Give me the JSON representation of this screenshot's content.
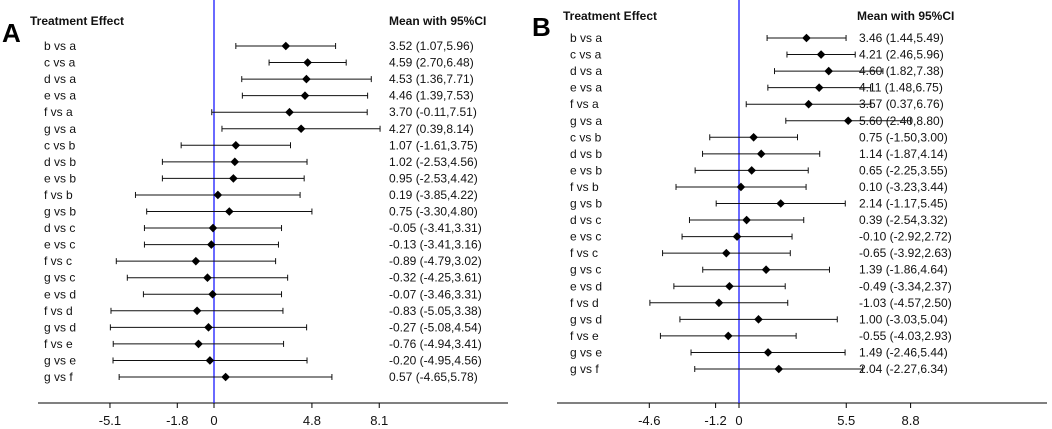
{
  "chart_data": [
    {
      "type": "forest",
      "panel_label": "A",
      "row_header": "Treatment Effect",
      "value_header": "Mean with 95%CI",
      "x_ticks": [
        "-5.1",
        "-1.8",
        "0",
        "4.8",
        "8.1"
      ],
      "reference_line": 0,
      "reference_color": "#1a1aff",
      "rows": [
        {
          "label": "b vs a",
          "mean": 3.52,
          "lower": 1.07,
          "upper": 5.96,
          "text": "3.52 (1.07,5.96)"
        },
        {
          "label": "c vs a",
          "mean": 4.59,
          "lower": 2.7,
          "upper": 6.48,
          "text": "4.59 (2.70,6.48)"
        },
        {
          "label": "d vs a",
          "mean": 4.53,
          "lower": 1.36,
          "upper": 7.71,
          "text": "4.53 (1.36,7.71)"
        },
        {
          "label": "e vs a",
          "mean": 4.46,
          "lower": 1.39,
          "upper": 7.53,
          "text": "4.46 (1.39,7.53)"
        },
        {
          "label": "f vs a",
          "mean": 3.7,
          "lower": -0.11,
          "upper": 7.51,
          "text": "3.70 (-0.11,7.51)"
        },
        {
          "label": "g vs a",
          "mean": 4.27,
          "lower": 0.39,
          "upper": 8.14,
          "text": "4.27 (0.39,8.14)"
        },
        {
          "label": "c vs b",
          "mean": 1.07,
          "lower": -1.61,
          "upper": 3.75,
          "text": "1.07 (-1.61,3.75)"
        },
        {
          "label": "d vs b",
          "mean": 1.02,
          "lower": -2.53,
          "upper": 4.56,
          "text": "1.02 (-2.53,4.56)"
        },
        {
          "label": "e vs b",
          "mean": 0.95,
          "lower": -2.53,
          "upper": 4.42,
          "text": "0.95 (-2.53,4.42)"
        },
        {
          "label": "f vs b",
          "mean": 0.19,
          "lower": -3.85,
          "upper": 4.22,
          "text": "0.19 (-3.85,4.22)"
        },
        {
          "label": "g vs b",
          "mean": 0.75,
          "lower": -3.3,
          "upper": 4.8,
          "text": "0.75 (-3.30,4.80)"
        },
        {
          "label": "d vs c",
          "mean": -0.05,
          "lower": -3.41,
          "upper": 3.31,
          "text": "-0.05 (-3.41,3.31)"
        },
        {
          "label": "e vs c",
          "mean": -0.13,
          "lower": -3.41,
          "upper": 3.16,
          "text": "-0.13 (-3.41,3.16)"
        },
        {
          "label": "f vs c",
          "mean": -0.89,
          "lower": -4.79,
          "upper": 3.02,
          "text": "-0.89 (-4.79,3.02)"
        },
        {
          "label": "g vs c",
          "mean": -0.32,
          "lower": -4.25,
          "upper": 3.61,
          "text": "-0.32 (-4.25,3.61)"
        },
        {
          "label": "e vs d",
          "mean": -0.07,
          "lower": -3.46,
          "upper": 3.31,
          "text": "-0.07 (-3.46,3.31)"
        },
        {
          "label": "f vs d",
          "mean": -0.83,
          "lower": -5.05,
          "upper": 3.38,
          "text": "-0.83 (-5.05,3.38)"
        },
        {
          "label": "g vs d",
          "mean": -0.27,
          "lower": -5.08,
          "upper": 4.54,
          "text": "-0.27 (-5.08,4.54)"
        },
        {
          "label": "f vs e",
          "mean": -0.76,
          "lower": -4.94,
          "upper": 3.41,
          "text": "-0.76 (-4.94,3.41)"
        },
        {
          "label": "g vs e",
          "mean": -0.2,
          "lower": -4.95,
          "upper": 4.56,
          "text": "-0.20 (-4.95,4.56)"
        },
        {
          "label": "g vs f",
          "mean": 0.57,
          "lower": -4.65,
          "upper": 5.78,
          "text": "0.57 (-4.65,5.78)"
        }
      ]
    },
    {
      "type": "forest",
      "panel_label": "B",
      "row_header": "Treatment Effect",
      "value_header": "Mean with 95%CI",
      "x_ticks": [
        "-4.6",
        "-1.2",
        "0",
        "5.5",
        "8.8"
      ],
      "reference_line": 0,
      "reference_color": "#1a1aff",
      "rows": [
        {
          "label": "b vs a",
          "mean": 3.46,
          "lower": 1.44,
          "upper": 5.49,
          "text": "3.46 (1.44,5.49)"
        },
        {
          "label": "c vs a",
          "mean": 4.21,
          "lower": 2.46,
          "upper": 5.96,
          "text": "4.21 (2.46,5.96)"
        },
        {
          "label": "d vs a",
          "mean": 4.6,
          "lower": 1.82,
          "upper": 7.38,
          "text": "4.60 (1.82,7.38)"
        },
        {
          "label": "e vs a",
          "mean": 4.11,
          "lower": 1.48,
          "upper": 6.75,
          "text": "4.11 (1.48,6.75)"
        },
        {
          "label": "f vs a",
          "mean": 3.57,
          "lower": 0.37,
          "upper": 6.76,
          "text": "3.57 (0.37,6.76)"
        },
        {
          "label": "g vs a",
          "mean": 5.6,
          "lower": 2.4,
          "upper": 8.8,
          "text": "5.60 (2.40,8.80)"
        },
        {
          "label": "c vs b",
          "mean": 0.75,
          "lower": -1.5,
          "upper": 3.0,
          "text": "0.75 (-1.50,3.00)"
        },
        {
          "label": "d vs b",
          "mean": 1.14,
          "lower": -1.87,
          "upper": 4.14,
          "text": "1.14 (-1.87,4.14)"
        },
        {
          "label": "e vs b",
          "mean": 0.65,
          "lower": -2.25,
          "upper": 3.55,
          "text": "0.65 (-2.25,3.55)"
        },
        {
          "label": "f vs b",
          "mean": 0.1,
          "lower": -3.23,
          "upper": 3.44,
          "text": "0.10 (-3.23,3.44)"
        },
        {
          "label": "g vs b",
          "mean": 2.14,
          "lower": -1.17,
          "upper": 5.45,
          "text": "2.14 (-1.17,5.45)"
        },
        {
          "label": "d vs c",
          "mean": 0.39,
          "lower": -2.54,
          "upper": 3.32,
          "text": "0.39 (-2.54,3.32)"
        },
        {
          "label": "e vs c",
          "mean": -0.1,
          "lower": -2.92,
          "upper": 2.72,
          "text": "-0.10 (-2.92,2.72)"
        },
        {
          "label": "f vs c",
          "mean": -0.65,
          "lower": -3.92,
          "upper": 2.63,
          "text": "-0.65 (-3.92,2.63)"
        },
        {
          "label": "g vs c",
          "mean": 1.39,
          "lower": -1.86,
          "upper": 4.64,
          "text": "1.39 (-1.86,4.64)"
        },
        {
          "label": "e vs d",
          "mean": -0.49,
          "lower": -3.34,
          "upper": 2.37,
          "text": "-0.49 (-3.34,2.37)"
        },
        {
          "label": "f vs d",
          "mean": -1.03,
          "lower": -4.57,
          "upper": 2.5,
          "text": "-1.03 (-4.57,2.50)"
        },
        {
          "label": "g vs d",
          "mean": 1.0,
          "lower": -3.03,
          "upper": 5.04,
          "text": "1.00 (-3.03,5.04)"
        },
        {
          "label": "f vs e",
          "mean": -0.55,
          "lower": -4.03,
          "upper": 2.93,
          "text": "-0.55 (-4.03,2.93)"
        },
        {
          "label": "g vs e",
          "mean": 1.49,
          "lower": -2.46,
          "upper": 5.44,
          "text": "1.49 (-2.46,5.44)"
        },
        {
          "label": "g vs f",
          "mean": 2.04,
          "lower": -2.27,
          "upper": 6.34,
          "text": "2.04 (-2.27,6.34)"
        }
      ]
    }
  ]
}
